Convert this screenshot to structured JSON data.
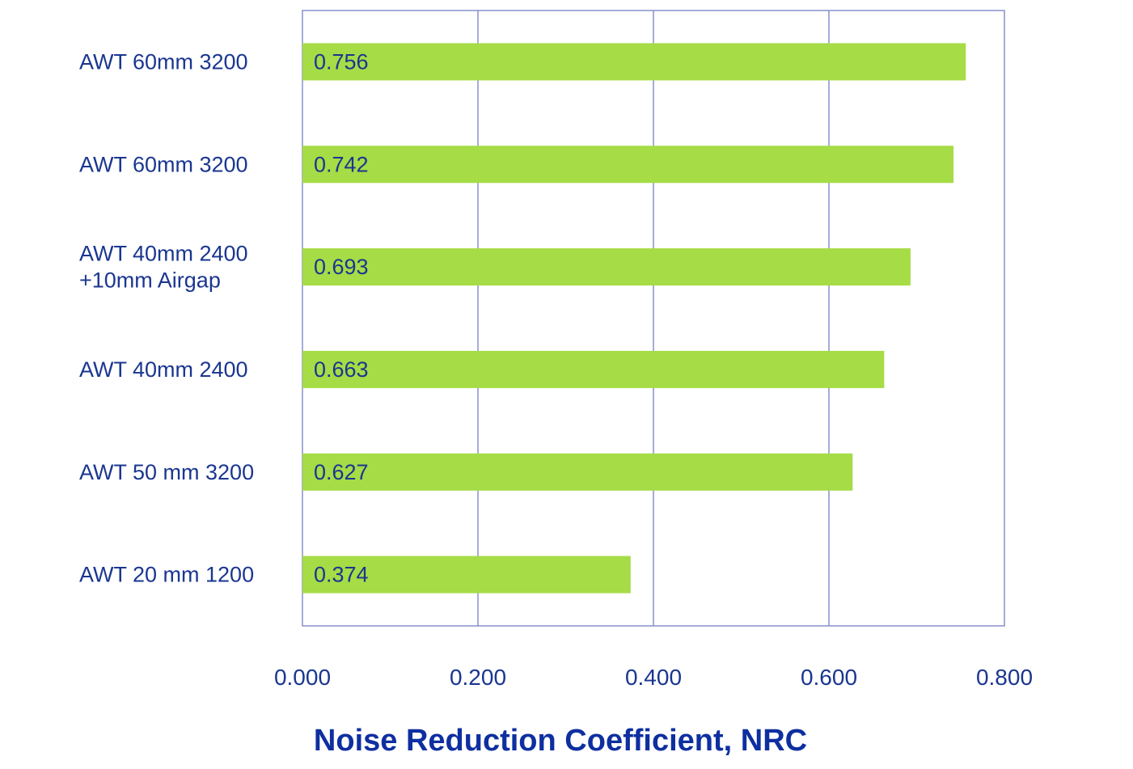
{
  "chart_data": {
    "type": "bar",
    "orientation": "horizontal",
    "categories": [
      [
        "AWT 60mm 3200"
      ],
      [
        "AWT 60mm 3200"
      ],
      [
        "AWT 40mm 2400",
        "+10mm Airgap"
      ],
      [
        "AWT 40mm 2400"
      ],
      [
        "AWT 50 mm 3200"
      ],
      [
        "AWT 20 mm 1200"
      ]
    ],
    "values": [
      0.756,
      0.742,
      0.693,
      0.663,
      0.627,
      0.374
    ],
    "value_labels": [
      "0.756",
      "0.742",
      "0.693",
      "0.663",
      "0.627",
      "0.374"
    ],
    "xlabel": "Noise Reduction Coefficient, NRC",
    "xlim": [
      0,
      0.8
    ],
    "x_ticks": [
      0,
      0.2,
      0.4,
      0.6,
      0.8
    ],
    "x_tick_labels": [
      "0.000",
      "0.200",
      "0.400",
      "0.600",
      "0.800"
    ],
    "grid": true,
    "legend": "none",
    "colors": {
      "bar": "#a6dc45",
      "grid": "#8890cc",
      "text": "#1a3690",
      "title": "#0e2fa0"
    }
  }
}
